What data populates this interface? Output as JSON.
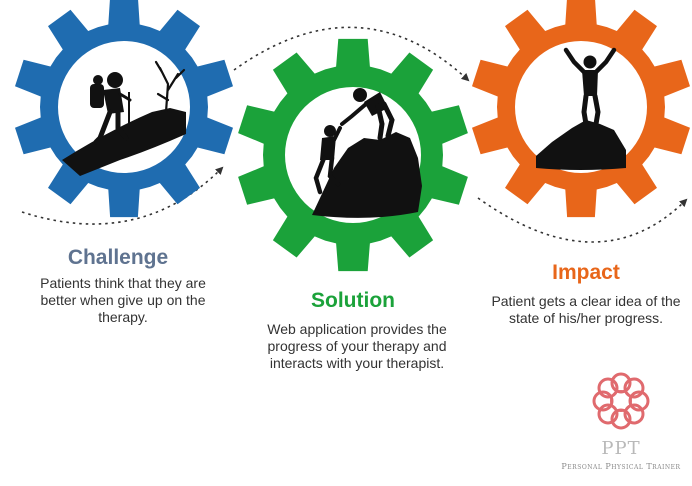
{
  "colors": {
    "challenge": "#1f6cb0",
    "solution": "#1ba23a",
    "impact": "#e8661a",
    "challenge_heading": "#5f7390",
    "solution_heading": "#1ba23a",
    "impact_heading": "#e8661a",
    "silhouette": "#111111",
    "connector": "#333333",
    "logo_knot": "#e06a6e"
  },
  "steps": [
    {
      "key": "challenge",
      "heading": "Challenge",
      "description": "Patients think that they are better when give up on the therapy.",
      "icon": "hiker-icon"
    },
    {
      "key": "solution",
      "heading": "Solution",
      "description": "Web application provides the progress of your therapy and interacts with your therapist.",
      "icon": "climbers-helping-icon"
    },
    {
      "key": "impact",
      "heading": "Impact",
      "description": "Patient gets a clear idea of the state of his/her progress.",
      "icon": "summit-victory-icon"
    }
  ],
  "brand": {
    "abbreviation": "PPT",
    "name": "Personal Physical Trainer",
    "icon": "celtic-knot-logo-icon"
  }
}
